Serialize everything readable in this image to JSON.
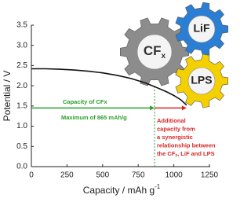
{
  "chart_data": {
    "type": "line",
    "xlabel": [
      "Capacity / mAh g",
      "-1"
    ],
    "ylabel": "Potential / V",
    "xlim": [
      0,
      1250
    ],
    "xticks": [
      0,
      250,
      500,
      750,
      1000,
      1250
    ],
    "ylim": [
      0,
      3.5
    ],
    "yticks": [
      {
        "value": 0,
        "label": "0.0"
      },
      0.5,
      {
        "value": 1,
        "label": "1.0"
      },
      1.5,
      {
        "value": 2,
        "label": "2.0"
      },
      2.5,
      {
        "value": 3,
        "label": "3.0"
      },
      3.5
    ],
    "series": [
      {
        "color": "#111111",
        "x": [
          0,
          100,
          200,
          300,
          400,
          500,
          600,
          700,
          800,
          865,
          950,
          1000,
          1050,
          1090
        ],
        "y": [
          2.42,
          2.42,
          2.41,
          2.39,
          2.36,
          2.32,
          2.26,
          2.18,
          2.07,
          1.98,
          1.85,
          1.76,
          1.65,
          1.52
        ]
      }
    ],
    "arrows": [
      {
        "color": "#2ca02c",
        "x": [
          0,
          865
        ],
        "y": 1.45
      },
      {
        "color": "#d62728",
        "x": [
          865,
          1090
        ],
        "y": 1.45
      }
    ],
    "marker_x": 865,
    "annotations": {
      "green": [
        "Capacity of CFx",
        "Maximum of 865 mAh/g"
      ],
      "red": [
        "Additional",
        "capacity from",
        "a synergistic",
        "relationship between",
        [
          "the CF",
          "x",
          ", LiF and LPS"
        ]
      ]
    },
    "gears": [
      [
        "CF",
        "x"
      ],
      "LiF",
      "LPS"
    ]
  }
}
